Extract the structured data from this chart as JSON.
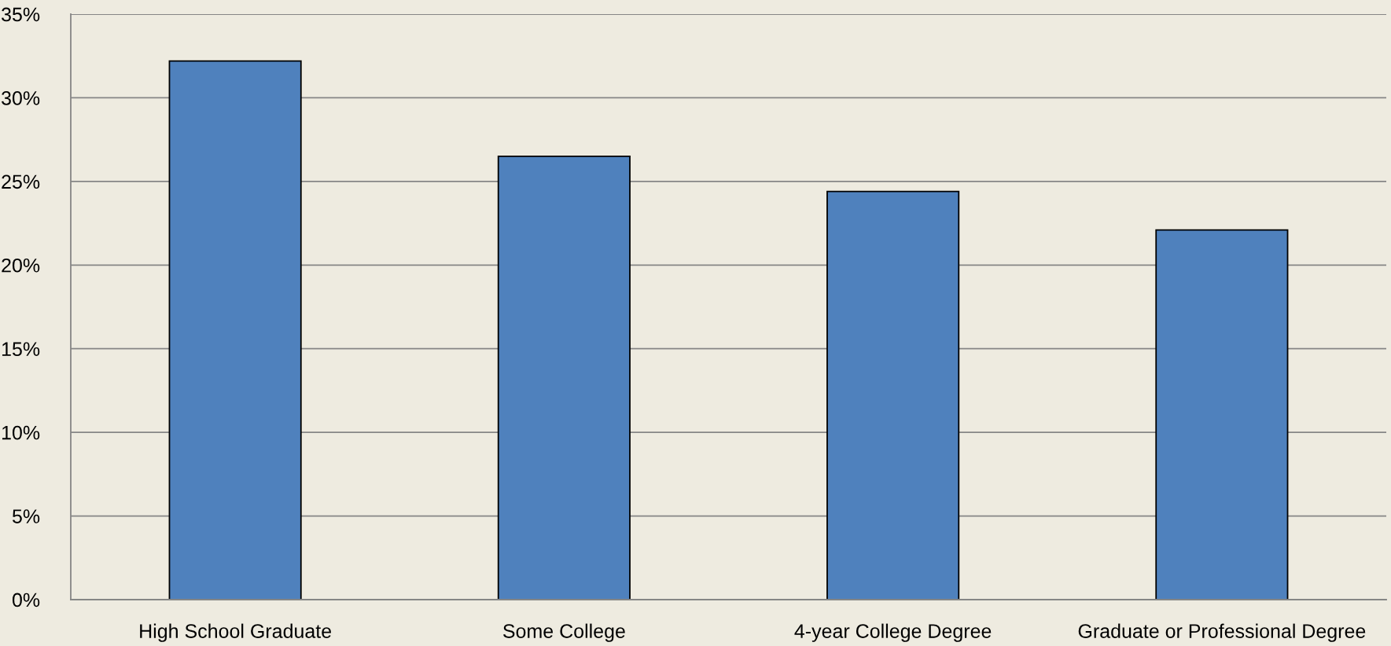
{
  "chart_data": {
    "type": "bar",
    "categories": [
      "High School Graduate",
      "Some College",
      "4-year College Degree",
      "Graduate or Professional Degree"
    ],
    "values": [
      32.2,
      26.5,
      24.4,
      22.1
    ],
    "color": "#4f81bd",
    "ylim": [
      0,
      35
    ],
    "yticks": [
      {
        "value": 0,
        "label": "0%"
      },
      {
        "value": 5,
        "label": "5%"
      },
      {
        "value": 10,
        "label": "10%"
      },
      {
        "value": 15,
        "label": "15%"
      },
      {
        "value": 20,
        "label": "20%"
      },
      {
        "value": 25,
        "label": "25%"
      },
      {
        "value": 30,
        "label": "30%"
      },
      {
        "value": 35,
        "label": "35%"
      }
    ],
    "grid": "y"
  }
}
